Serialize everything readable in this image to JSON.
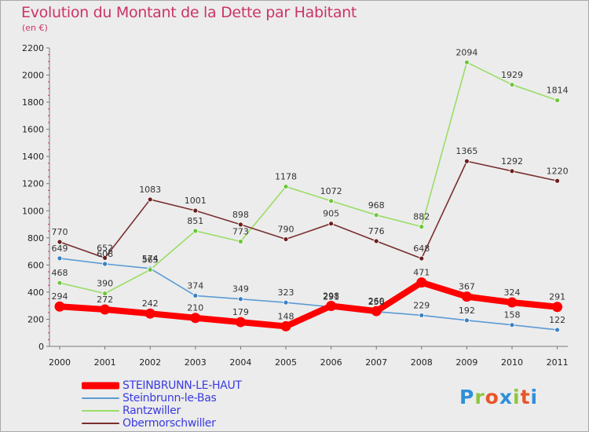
{
  "title": "Evolution du Montant de la Dette par Habitant",
  "subtitle": "(en €)",
  "logo": {
    "letters": [
      "P",
      "r",
      "o",
      "x",
      "i",
      "t",
      "i"
    ],
    "colors": [
      "#2f8fd8",
      "#8dc63f",
      "#e8552a",
      "#2f8fd8",
      "#8dc63f",
      "#e8552a",
      "#2f8fd8"
    ]
  },
  "chart_data": {
    "type": "line",
    "x": [
      "2000",
      "2001",
      "2002",
      "2003",
      "2004",
      "2005",
      "2006",
      "2007",
      "2008",
      "2009",
      "2010",
      "2011"
    ],
    "ylim": [
      0,
      2200
    ],
    "yticks": [
      "0",
      "200",
      "400",
      "600",
      "800",
      "1000",
      "1200",
      "1400",
      "1600",
      "1800",
      "2000",
      "2200"
    ],
    "grid": false,
    "legend_position": "bottom-left",
    "series": [
      {
        "name": "STEINBRUNN-LE-HAUT",
        "color": "#ff0000",
        "marker_color": "#ff0000",
        "thick": true,
        "values": [
          294,
          272,
          242,
          210,
          179,
          148,
          298,
          260,
          471,
          367,
          324,
          291
        ],
        "labels": [
          "294",
          "272",
          "242",
          "210",
          "179",
          "148",
          "298",
          "260",
          "471",
          "367",
          "324",
          "291"
        ]
      },
      {
        "name": "Steinbrunn-le-Bas",
        "color": "#5b9bd5",
        "marker_color": "#3b7fc4",
        "thick": false,
        "values": [
          649,
          608,
          574,
          374,
          349,
          323,
          291,
          256,
          229,
          192,
          158,
          122
        ],
        "labels": [
          "649",
          "608",
          "574",
          "374",
          "349",
          "323",
          "291",
          "256",
          "229",
          "192",
          "158",
          "122"
        ]
      },
      {
        "name": "Rantzwiller",
        "color": "#99dd66",
        "marker_color": "#6cc63a",
        "thick": false,
        "values": [
          468,
          390,
          565,
          851,
          773,
          1178,
          1072,
          968,
          882,
          2094,
          1929,
          1814
        ],
        "labels": [
          "468",
          "390",
          "565",
          "851",
          "773",
          "1178",
          "1072",
          "968",
          "882",
          "2094",
          "1929",
          "1814"
        ]
      },
      {
        "name": "Obermorschwiller",
        "color": "#7a2e2e",
        "marker_color": "#6b1e1e",
        "thick": false,
        "values": [
          770,
          652,
          1083,
          1001,
          898,
          790,
          905,
          776,
          648,
          1365,
          1292,
          1220
        ],
        "labels": [
          "770",
          "652",
          "1083",
          "1001",
          "898",
          "790",
          "905",
          "776",
          "648",
          "1365",
          "1292",
          "1220"
        ]
      }
    ]
  }
}
